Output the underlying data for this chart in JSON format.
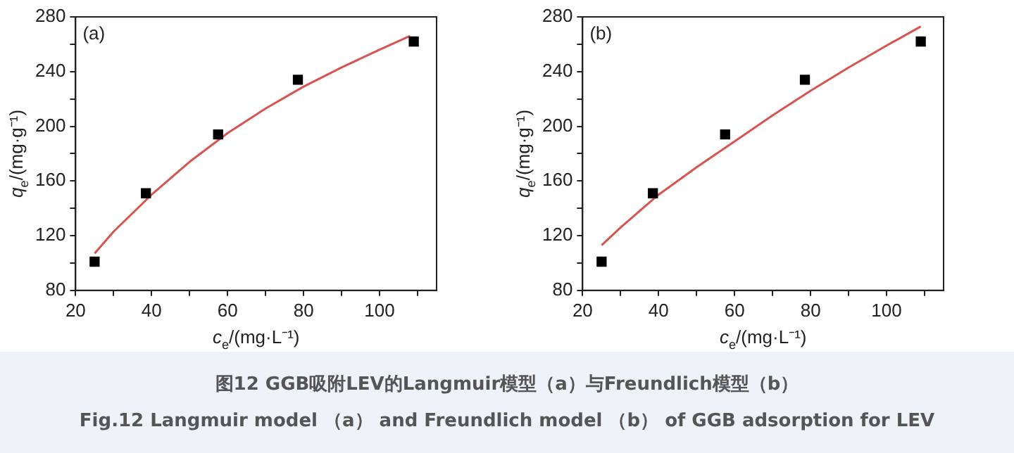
{
  "chart_data": [
    {
      "type": "scatter",
      "xlabel": "c$_{e}$/(mg·L⁻¹)",
      "ylabel": "q$_{e}$/(mg·g⁻¹)",
      "xlim": [
        20,
        115
      ],
      "ylim": [
        80,
        280
      ],
      "xticks": [
        20,
        {
          "value": 30,
          "label": null
        },
        40,
        {
          "value": 50,
          "label": null
        },
        60,
        {
          "value": 70,
          "label": null
        },
        80,
        {
          "value": 90,
          "label": null
        },
        100,
        {
          "value": 110,
          "label": null
        }
      ],
      "yticks": [
        80,
        {
          "value": 100,
          "label": null
        },
        120,
        {
          "value": 140,
          "label": null
        },
        160,
        {
          "value": 180,
          "label": null
        },
        200,
        {
          "value": 220,
          "label": null
        },
        240,
        {
          "value": 260,
          "label": null
        },
        280
      ],
      "grid": false,
      "legend": false,
      "annotations": [
        "(a)",
        "图12 GGB吸附LEV的Langmuir模型（a）与Freundlich模型（b）",
        "Fig.12 Langmuir model （a） and Freundlich model （b） of GGB adsorption for LEV"
      ],
      "series": [
        {
          "type": "scatter",
          "marker": "square",
          "color": "#000000",
          "x": [
            25,
            38.5,
            57.5,
            78.5,
            109
          ],
          "values": [
            101,
            151,
            194,
            234,
            262
          ]
        },
        {
          "type": "line",
          "marker": "none",
          "line_style": "solid",
          "color": "#d9534f",
          "x": [
            25,
            30,
            40,
            50,
            60,
            70,
            80,
            90,
            100,
            108
          ],
          "values": [
            107,
            123,
            150,
            174,
            195,
            213,
            229,
            243,
            256,
            266
          ]
        }
      ]
    },
    {
      "type": "scatter",
      "xlabel": "c$_{e}$/(mg·L⁻¹)",
      "ylabel": "q$_{e}$/(mg·g⁻¹)",
      "xlim": [
        20,
        115
      ],
      "ylim": [
        80,
        280
      ],
      "xticks": [
        20,
        {
          "value": 30,
          "label": null
        },
        40,
        {
          "value": 50,
          "label": null
        },
        60,
        {
          "value": 70,
          "label": null
        },
        80,
        {
          "value": 90,
          "label": null
        },
        100,
        {
          "value": 110,
          "label": null
        }
      ],
      "yticks": [
        80,
        {
          "value": 100,
          "label": null
        },
        120,
        {
          "value": 140,
          "label": null
        },
        160,
        {
          "value": 180,
          "label": null
        },
        200,
        {
          "value": 220,
          "label": null
        },
        240,
        {
          "value": 260,
          "label": null
        },
        280
      ],
      "grid": false,
      "legend": false,
      "annotations": [
        "(b)"
      ],
      "series": [
        {
          "type": "scatter",
          "marker": "square",
          "color": "#000000",
          "x": [
            25,
            38.5,
            57.5,
            78.5,
            109
          ],
          "values": [
            101,
            151,
            194,
            234,
            262
          ]
        },
        {
          "type": "line",
          "marker": "none",
          "line_style": "solid",
          "color": "#d9534f",
          "x": [
            25,
            30,
            40,
            50,
            60,
            70,
            80,
            90,
            100,
            109
          ],
          "values": [
            113,
            126,
            150,
            170,
            189,
            208,
            226,
            243,
            259,
            273
          ]
        }
      ]
    }
  ]
}
